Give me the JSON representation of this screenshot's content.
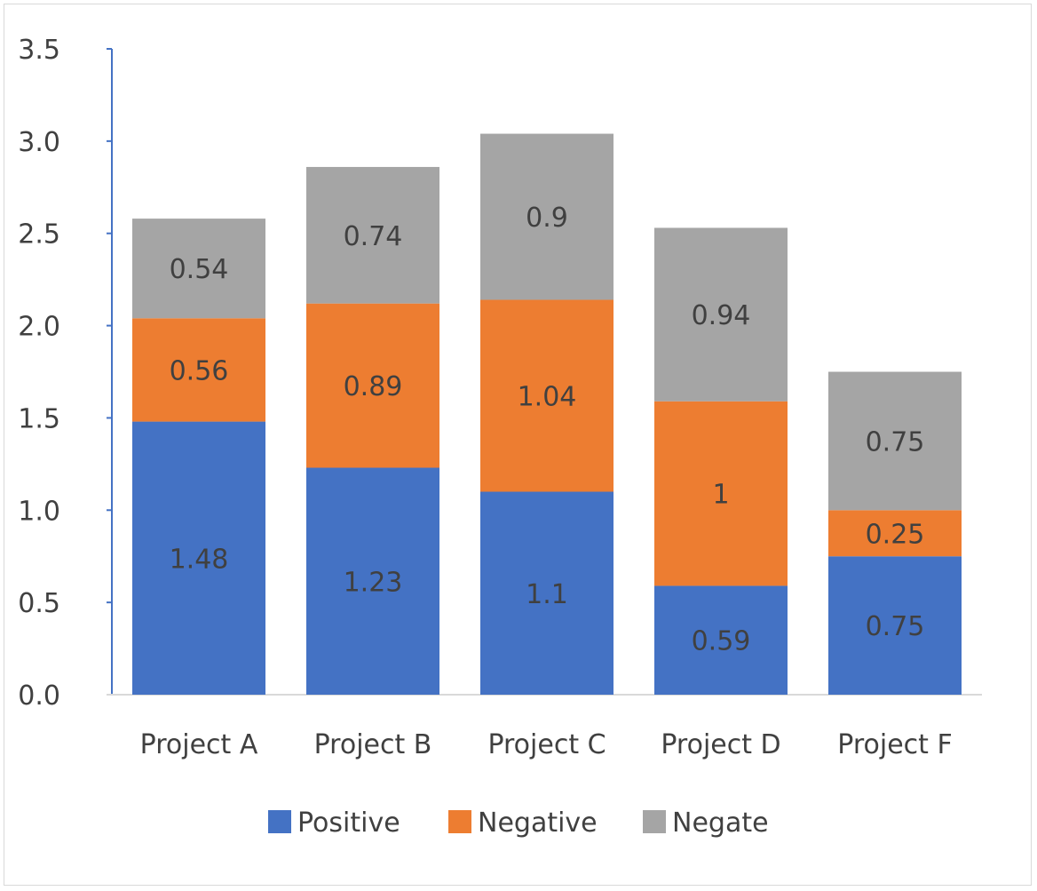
{
  "chart_data": {
    "type": "bar",
    "stacked": true,
    "title": "",
    "xlabel": "",
    "ylabel": "",
    "categories": [
      "Project A",
      "Project B",
      "Project C",
      "Project D",
      "Project F"
    ],
    "series": [
      {
        "name": "Positive",
        "color": "#4472c4",
        "values": [
          1.48,
          1.23,
          1.1,
          0.59,
          0.75
        ],
        "labels": [
          "1.48",
          "1.23",
          "1.1",
          "0.59",
          "0.75"
        ]
      },
      {
        "name": "Negative",
        "color": "#ed7d31",
        "values": [
          0.56,
          0.89,
          1.04,
          1.0,
          0.25
        ],
        "labels": [
          "0.56",
          "0.89",
          "1.04",
          "1",
          "0.25"
        ]
      },
      {
        "name": "Negate",
        "color": "#a5a5a5",
        "values": [
          0.54,
          0.74,
          0.9,
          0.94,
          0.75
        ],
        "labels": [
          "0.54",
          "0.74",
          "0.9",
          "0.94",
          "0.75"
        ]
      }
    ],
    "ylim": [
      0,
      3.5
    ],
    "yticks": [
      "0.0",
      "0.5",
      "1.0",
      "1.5",
      "2.0",
      "2.5",
      "3.0",
      "3.5"
    ],
    "grid": false,
    "legend_position": "bottom",
    "axis_color": "#4472c4"
  }
}
